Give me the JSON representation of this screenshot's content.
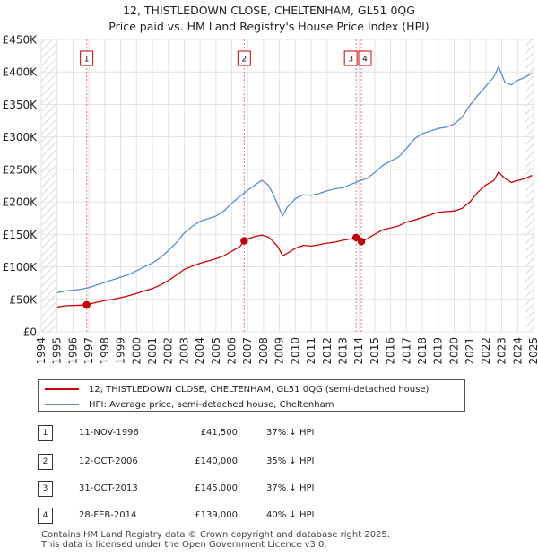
{
  "title_line1": "12, THISTLEDOWN CLOSE, CHELTENHAM, GL51 0QG",
  "title_line2": "Price paid vs. HM Land Registry's House Price Index (HPI)",
  "chart_data": {
    "type": "line",
    "xlim": [
      1994,
      2025
    ],
    "ylim": [
      0,
      450000
    ],
    "x_ticks": [
      1994,
      1995,
      1996,
      1997,
      1998,
      1999,
      2000,
      2001,
      2002,
      2003,
      2004,
      2005,
      2006,
      2007,
      2008,
      2009,
      2010,
      2011,
      2012,
      2013,
      2014,
      2015,
      2016,
      2017,
      2018,
      2019,
      2020,
      2021,
      2022,
      2023,
      2024,
      2025
    ],
    "y_ticks": [
      {
        "value": 0,
        "label": "£0"
      },
      {
        "value": 50000,
        "label": "£50K"
      },
      {
        "value": 100000,
        "label": "£100K"
      },
      {
        "value": 150000,
        "label": "£150K"
      },
      {
        "value": 200000,
        "label": "£200K"
      },
      {
        "value": 250000,
        "label": "£250K"
      },
      {
        "value": 300000,
        "label": "£300K"
      },
      {
        "value": 350000,
        "label": "£350K"
      },
      {
        "value": 400000,
        "label": "£400K"
      },
      {
        "value": 450000,
        "label": "£450K"
      }
    ],
    "grid": true,
    "hatched_ranges": [
      [
        1994,
        1995
      ],
      [
        2024.5,
        2025
      ]
    ],
    "series": [
      {
        "name": "12, THISTLEDOWN CLOSE, CHELTENHAM, GL51 0QG (semi-detached house)",
        "color": "#cc0000",
        "x": [
          1995.0,
          1995.5,
          1996.0,
          1996.5,
          1996.86,
          1997.5,
          1998.0,
          1998.5,
          1999.0,
          1999.5,
          2000.0,
          2000.5,
          2001.0,
          2001.5,
          2002.0,
          2002.5,
          2003.0,
          2003.5,
          2004.0,
          2004.5,
          2005.0,
          2005.5,
          2006.0,
          2006.5,
          2006.78,
          2007.0,
          2007.5,
          2007.9,
          2008.3,
          2008.6,
          2008.9,
          2009.2,
          2009.5,
          2010.0,
          2010.5,
          2011.0,
          2011.5,
          2012.0,
          2012.5,
          2013.0,
          2013.5,
          2013.83,
          2014.0,
          2014.16,
          2014.5,
          2015.0,
          2015.5,
          2016.0,
          2016.5,
          2017.0,
          2017.5,
          2018.0,
          2018.5,
          2019.0,
          2019.5,
          2020.0,
          2020.5,
          2021.0,
          2021.5,
          2022.0,
          2022.5,
          2022.8,
          2023.2,
          2023.6,
          2024.0,
          2024.5,
          2024.9
        ],
        "values": [
          38000,
          40000,
          40500,
          41000,
          41500,
          45500,
          48000,
          50000,
          52500,
          55500,
          59000,
          63000,
          66500,
          72000,
          79000,
          87000,
          96000,
          101000,
          105500,
          109000,
          112500,
          117000,
          124000,
          131000,
          140000,
          143000,
          147000,
          149000,
          146000,
          139000,
          131000,
          117000,
          121000,
          128500,
          133000,
          132000,
          134000,
          136500,
          138000,
          141000,
          143000,
          145000,
          145500,
          139000,
          143000,
          150000,
          157000,
          160000,
          163000,
          169000,
          172000,
          176000,
          180000,
          184000,
          185000,
          186000,
          190000,
          200000,
          215000,
          226000,
          233000,
          246000,
          236000,
          230000,
          233000,
          236000,
          241000
        ]
      },
      {
        "name": "HPI: Average price, semi-detached house, Cheltenham",
        "color": "#5b8cc9",
        "x": [
          1995.0,
          1995.5,
          1996.0,
          1996.5,
          1997.0,
          1997.5,
          1998.0,
          1998.5,
          1999.0,
          1999.5,
          2000.0,
          2000.5,
          2001.0,
          2001.5,
          2002.0,
          2002.5,
          2003.0,
          2003.5,
          2004.0,
          2004.5,
          2005.0,
          2005.5,
          2006.0,
          2006.5,
          2007.0,
          2007.5,
          2007.9,
          2008.3,
          2008.6,
          2008.9,
          2009.2,
          2009.5,
          2010.0,
          2010.5,
          2011.0,
          2011.5,
          2012.0,
          2012.5,
          2013.0,
          2013.5,
          2014.0,
          2014.5,
          2015.0,
          2015.5,
          2016.0,
          2016.5,
          2017.0,
          2017.5,
          2018.0,
          2018.5,
          2019.0,
          2019.5,
          2020.0,
          2020.5,
          2021.0,
          2021.5,
          2022.0,
          2022.5,
          2022.8,
          2023.2,
          2023.6,
          2024.0,
          2024.5,
          2024.9
        ],
        "values": [
          60000,
          63000,
          64000,
          65500,
          68000,
          72000,
          76000,
          80000,
          84000,
          88000,
          94000,
          100000,
          106000,
          114000,
          125000,
          137000,
          152000,
          162000,
          170000,
          174000,
          178000,
          186000,
          198000,
          208000,
          218000,
          227000,
          233000,
          226000,
          212000,
          195000,
          178000,
          192000,
          205000,
          211000,
          210000,
          213000,
          217000,
          220000,
          222000,
          227000,
          232000,
          236000,
          245000,
          256000,
          263000,
          269000,
          282000,
          297000,
          305000,
          309000,
          313000,
          315000,
          320000,
          330000,
          349000,
          364000,
          378000,
          392000,
          408000,
          384000,
          380000,
          387000,
          392000,
          398000
        ]
      }
    ],
    "sales": [
      {
        "num": "1",
        "x": 1996.86,
        "value": 41500
      },
      {
        "num": "2",
        "x": 2006.78,
        "value": 140000
      },
      {
        "num": "3",
        "x": 2013.83,
        "value": 145000
      },
      {
        "num": "4",
        "x": 2014.16,
        "value": 139000
      }
    ]
  },
  "legend": {
    "property_label": "12, THISTLEDOWN CLOSE, CHELTENHAM, GL51 0QG (semi-detached house)",
    "hpi_label": "HPI: Average price, semi-detached house, Cheltenham",
    "property_color": "#cc0000",
    "hpi_color": "#5b8cc9"
  },
  "sales_table": [
    {
      "num": "1",
      "date": "11-NOV-1996",
      "price": "£41,500",
      "hpi": "37% ↓ HPI"
    },
    {
      "num": "2",
      "date": "12-OCT-2006",
      "price": "£140,000",
      "hpi": "35% ↓ HPI"
    },
    {
      "num": "3",
      "date": "31-OCT-2013",
      "price": "£145,000",
      "hpi": "37% ↓ HPI"
    },
    {
      "num": "4",
      "date": "28-FEB-2014",
      "price": "£139,000",
      "hpi": "40% ↓ HPI"
    }
  ],
  "footer_line1": "Contains HM Land Registry data © Crown copyright and database right 2025.",
  "footer_line2": "This data is licensed under the Open Government Licence v3.0."
}
